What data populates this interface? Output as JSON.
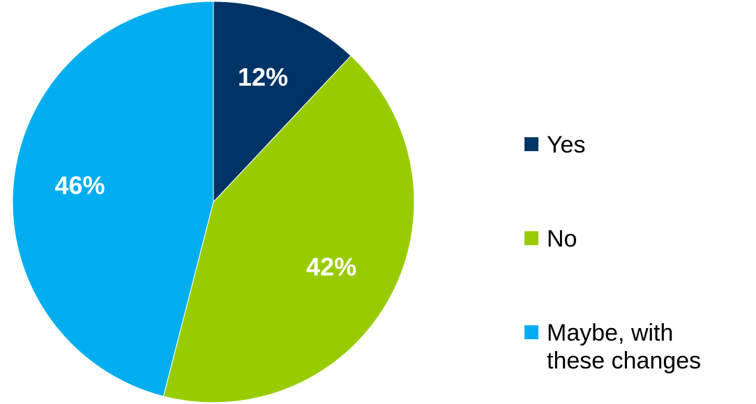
{
  "chart_data": {
    "type": "pie",
    "categories": [
      "Yes",
      "No",
      "Maybe, with these changes"
    ],
    "values": [
      12,
      42,
      46
    ],
    "value_labels": [
      "12%",
      "42%",
      "46%"
    ],
    "colors": [
      "#003366",
      "#99CC00",
      "#00AEEF"
    ],
    "start_angle_deg": 0,
    "direction": "clockwise",
    "legend": {
      "position": "right",
      "entries": [
        {
          "lines": [
            "Yes"
          ]
        },
        {
          "lines": [
            "No"
          ]
        },
        {
          "lines": [
            "Maybe, with",
            "these changes"
          ]
        }
      ]
    },
    "title": ""
  }
}
